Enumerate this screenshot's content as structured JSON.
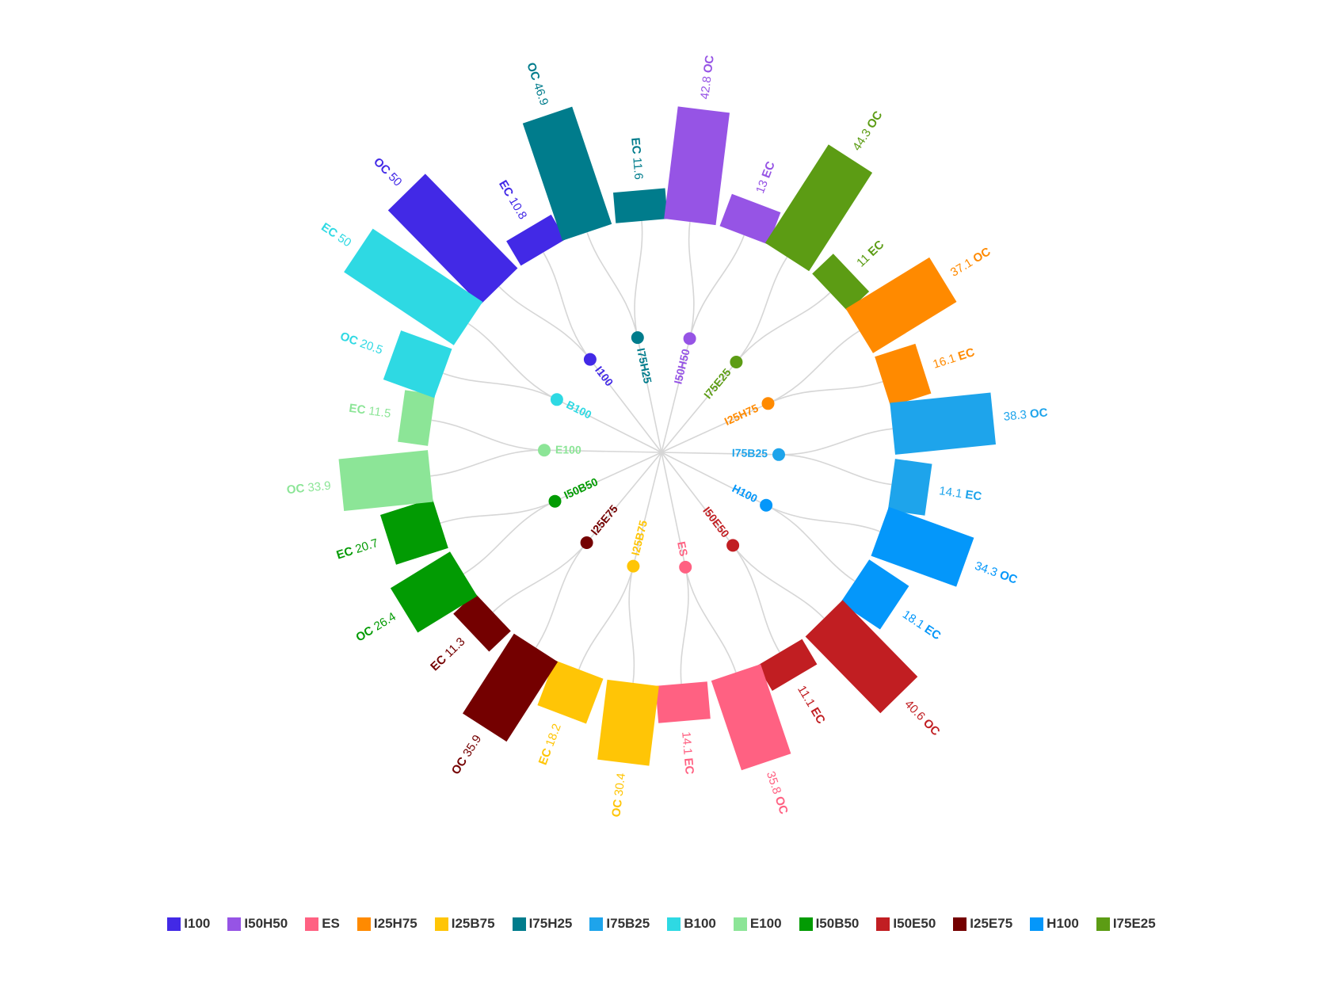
{
  "chart_data": {
    "type": "radial-bar",
    "groups": [
      {
        "name": "I100",
        "color": "#4229E6",
        "ec": 10.8,
        "oc": 50
      },
      {
        "name": "I75H25",
        "color": "#007C8C",
        "ec": 11.6,
        "oc": 46.9
      },
      {
        "name": "I50H50",
        "color": "#9654E5",
        "ec": 13,
        "oc": 42.8
      },
      {
        "name": "I75E25",
        "color": "#5C9C14",
        "ec": 11,
        "oc": 44.3
      },
      {
        "name": "I25H75",
        "color": "#FF8A00",
        "ec": 16.1,
        "oc": 37.1
      },
      {
        "name": "I75B25",
        "color": "#1EA4EB",
        "ec": 14.1,
        "oc": 38.3
      },
      {
        "name": "H100",
        "color": "#0497FA",
        "ec": 18.1,
        "oc": 34.3
      },
      {
        "name": "I50E50",
        "color": "#C11E22",
        "ec": 11.1,
        "oc": 40.6
      },
      {
        "name": "ES",
        "color": "#FF6182",
        "ec": 14.1,
        "oc": 35.8
      },
      {
        "name": "I25B75",
        "color": "#FFC506",
        "ec": 18.2,
        "oc": 30.4
      },
      {
        "name": "I25E75",
        "color": "#740000",
        "ec": 11.3,
        "oc": 35.9
      },
      {
        "name": "I50B50",
        "color": "#029B03",
        "ec": 20.7,
        "oc": 26.4
      },
      {
        "name": "E100",
        "color": "#8CE597",
        "ec": 11.5,
        "oc": 33.9
      },
      {
        "name": "B100",
        "color": "#2ED9E3",
        "ec": 50,
        "oc": 20.5
      }
    ],
    "bar_labels": {
      "ec": "EC",
      "oc": "OC"
    }
  },
  "legend": [
    {
      "label": "I100",
      "color": "#4229E6"
    },
    {
      "label": "I50H50",
      "color": "#9654E5"
    },
    {
      "label": "ES",
      "color": "#FF6182"
    },
    {
      "label": "I25H75",
      "color": "#FF8A00"
    },
    {
      "label": "I25B75",
      "color": "#FFC506"
    },
    {
      "label": "I75H25",
      "color": "#007C8C"
    },
    {
      "label": "I75B25",
      "color": "#1EA4EB"
    },
    {
      "label": "B100",
      "color": "#2ED9E3"
    },
    {
      "label": "E100",
      "color": "#8CE597"
    },
    {
      "label": "I50B50",
      "color": "#029B03"
    },
    {
      "label": "I50E50",
      "color": "#C11E22"
    },
    {
      "label": "I25E75",
      "color": "#740000"
    },
    {
      "label": "H100",
      "color": "#0497FA"
    },
    {
      "label": "I75E25",
      "color": "#5C9C14"
    }
  ]
}
